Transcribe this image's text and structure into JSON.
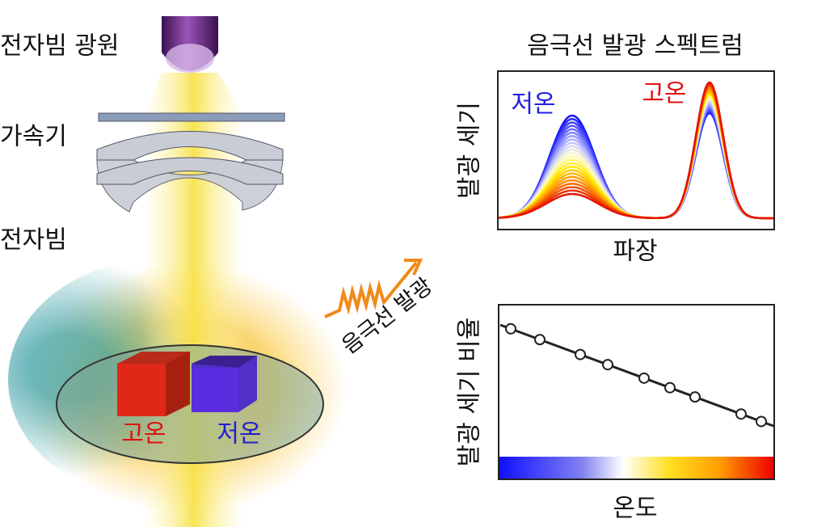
{
  "left_panel": {
    "source_label": "전자빔 광원",
    "accelerator_label": "가속기",
    "beam_label": "전자빔",
    "sample": {
      "hot_label": "고온",
      "cold_label": "저온"
    },
    "emission_label": "음극선 발광"
  },
  "spectrum_panel": {
    "title": "음극선 발광 스펙트럼",
    "y_label": "발광 세기",
    "x_label": "파장",
    "cold_label": "저온",
    "hot_label": "고온"
  },
  "ratio_panel": {
    "y_label": "발광 세기 비율",
    "x_label": "온도"
  }
}
